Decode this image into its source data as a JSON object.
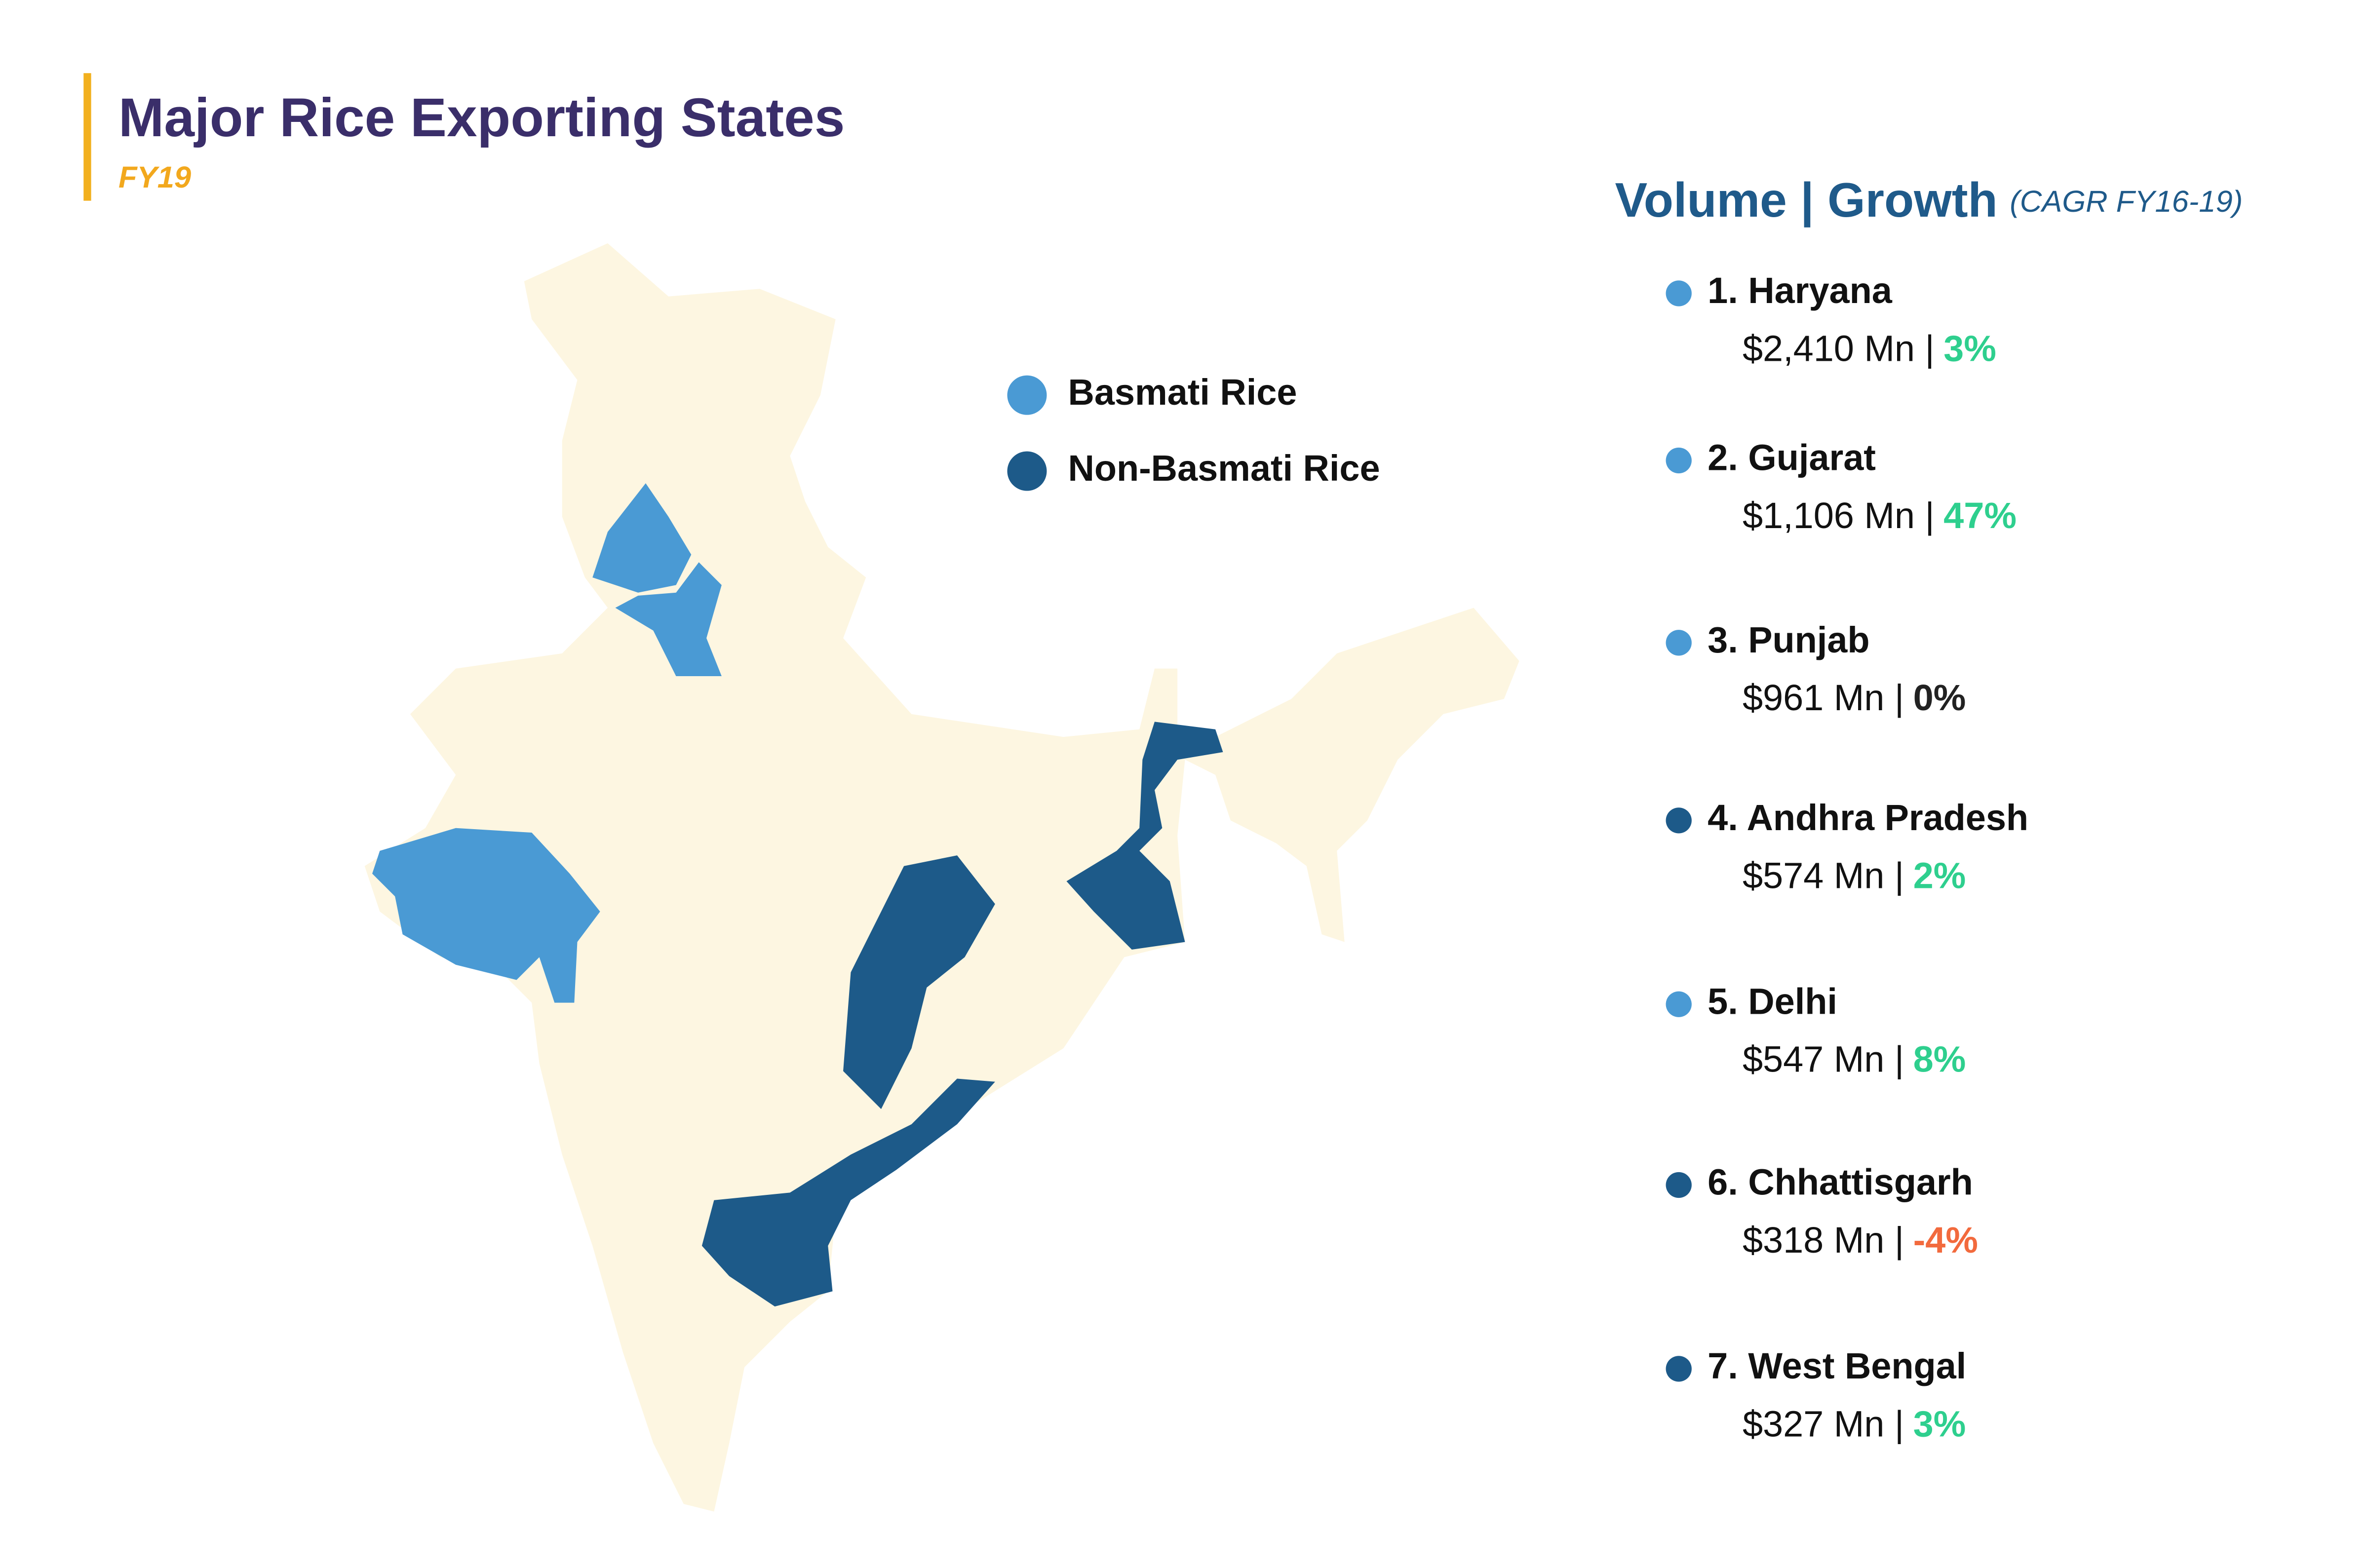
{
  "header": {
    "title": "Major Rice Exporting States",
    "subtitle": "FY19"
  },
  "legend": [
    {
      "label": "Basmati Rice",
      "color": "#4a9ad4"
    },
    {
      "label": "Non-Basmati Rice",
      "color": "#1d5a89"
    }
  ],
  "list": {
    "heading": "Volume | Growth",
    "note": "(CAGR FY16-19)",
    "items": [
      {
        "name": "1. Haryana",
        "volume": "$2,410 Mn |",
        "growth": "3%",
        "color": "#4a9ad4",
        "growth_color": "#2ecf8e"
      },
      {
        "name": "2. Gujarat",
        "volume": "$1,106 Mn |",
        "growth": "47%",
        "color": "#4a9ad4",
        "growth_color": "#2ecf8e"
      },
      {
        "name": "3. Punjab",
        "volume": "$961 Mn |",
        "growth": "0%",
        "color": "#4a9ad4",
        "growth_color": "#222222"
      },
      {
        "name": "4. Andhra Pradesh",
        "volume": "$574 Mn |",
        "growth": "2%",
        "color": "#1d5a89",
        "growth_color": "#2ecf8e"
      },
      {
        "name": "5. Delhi",
        "volume": "$547 Mn |",
        "growth": "8%",
        "color": "#4a9ad4",
        "growth_color": "#2ecf8e"
      },
      {
        "name": "6. Chhattisgarh",
        "volume": "$318 Mn |",
        "growth": "-4%",
        "color": "#1d5a89",
        "growth_color": "#f26a3d"
      },
      {
        "name": "7. West Bengal",
        "volume": "$327 Mn |",
        "growth": "3%",
        "color": "#1d5a89",
        "growth_color": "#2ecf8e"
      }
    ]
  }
}
